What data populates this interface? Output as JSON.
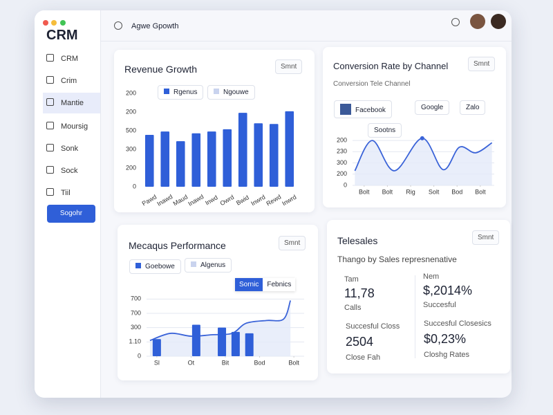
{
  "app": {
    "logo": "CRM",
    "search": "Agwe Gpowth",
    "nav": [
      "CRM",
      "Crim",
      "Mantie",
      "Moursig",
      "Sonk",
      "Sock",
      "Tiil"
    ],
    "button": "Sogohr"
  },
  "chart_data": [
    {
      "type": "bar",
      "title": "Revenue Growth",
      "button": "Smnt",
      "categories": [
        "Pawd",
        "Inawd",
        "Maud",
        "Inawd",
        "Inwd",
        "Owrd",
        "Bwid",
        "Inwrd",
        "Rewd",
        "Inwrd"
      ],
      "series": [
        {
          "name": "Rgenus",
          "color": "#2f5fd8",
          "values": [
            139,
            148,
            122,
            143,
            148,
            154,
            198,
            170,
            168,
            202
          ]
        }
      ],
      "extra_legend": {
        "name": "Ngouwe",
        "color": "#c9d3ee"
      },
      "ylim": [
        0,
        250
      ],
      "yticks": [
        0,
        {
          "value": 50,
          "label": "200"
        },
        {
          "value": 100,
          "label": "300"
        },
        {
          "value": 150,
          "label": "500"
        },
        {
          "value": 200,
          "label": "200"
        },
        {
          "value": 250,
          "label": "200"
        }
      ]
    },
    {
      "type": "line",
      "title": "Conversion Rate by Channel",
      "subtitle": "Conversion Tele Channel",
      "button": "Smnt",
      "filters": [
        "Facebook",
        "Google",
        "Zalo"
      ],
      "annotation": "Sootns",
      "x": [
        -0.4,
        0.35,
        1.3,
        2.5,
        3.4,
        4.1,
        4.8,
        5.5
      ],
      "series": [
        {
          "name": "Conversion",
          "color": "#3a63d8",
          "values": [
            1.3,
            4.0,
            1.3,
            4.2,
            1.4,
            3.4,
            2.9,
            3.8
          ]
        }
      ],
      "xlim": [
        -0.5,
        5.6
      ],
      "ylim": [
        0,
        4.5
      ],
      "xticks": [
        {
          "value": 0,
          "label": "Bolt"
        },
        {
          "value": 1,
          "label": "Bolt"
        },
        {
          "value": 2,
          "label": "Rig"
        },
        {
          "value": 3,
          "label": "Solt"
        },
        {
          "value": 4,
          "label": "Bod"
        },
        {
          "value": 5,
          "label": "Bolt"
        }
      ],
      "yticks": [
        0,
        {
          "value": 1,
          "label": "200"
        },
        {
          "value": 2,
          "label": "300"
        },
        {
          "value": 3,
          "label": "230"
        },
        {
          "value": 4,
          "label": "200"
        }
      ]
    },
    {
      "type": "combo",
      "title": "Mecaqus Performance",
      "button": "Smnt",
      "tooltip": [
        "Sornic",
        "Febnics"
      ],
      "series": [
        {
          "name": "Goebowe",
          "color": "#2f5fd8",
          "x": [
            0,
            1.15,
            1.9,
            2.3,
            2.7
          ],
          "values": [
            1.2,
            2.2,
            2.0,
            1.7,
            1.6
          ]
        },
        {
          "name": "Algenus",
          "color": "#3a63d8",
          "x": [
            -0.2,
            0.4,
            1,
            1.6,
            2.2,
            2.6,
            3.2,
            3.7,
            3.9
          ],
          "values": [
            1.1,
            1.6,
            1.4,
            1.5,
            1.6,
            2.3,
            2.5,
            2.6,
            3.9
          ]
        }
      ],
      "xlim": [
        -0.3,
        4.3
      ],
      "ylim": [
        0,
        4.5
      ],
      "xticks": [
        {
          "value": 0,
          "label": "Sl"
        },
        {
          "value": 1,
          "label": "Ot"
        },
        {
          "value": 2,
          "label": "Bit"
        },
        {
          "value": 3,
          "label": "Bod"
        },
        {
          "value": 4,
          "label": "Bolt"
        }
      ],
      "yticks": [
        0,
        {
          "value": 1,
          "label": "1.10"
        },
        {
          "value": 2,
          "label": "300"
        },
        {
          "value": 3,
          "label": "700"
        },
        {
          "value": 4,
          "label": "700"
        }
      ]
    }
  ],
  "telesales": {
    "title": "Telesales",
    "subtitle": "Thango by Sales represnenative",
    "button": "Smnt",
    "stats": [
      {
        "label": "Tam",
        "value": "11,78",
        "note": "Calls"
      },
      {
        "label": "Nem",
        "value": "$,2014%",
        "note": "Succesful"
      },
      {
        "label": "Succesful Closs",
        "value": "2504",
        "note": "Close Fah"
      },
      {
        "label": "Succesful Closesics",
        "value": "$0,23%",
        "note": "Closhg Rates"
      }
    ]
  }
}
